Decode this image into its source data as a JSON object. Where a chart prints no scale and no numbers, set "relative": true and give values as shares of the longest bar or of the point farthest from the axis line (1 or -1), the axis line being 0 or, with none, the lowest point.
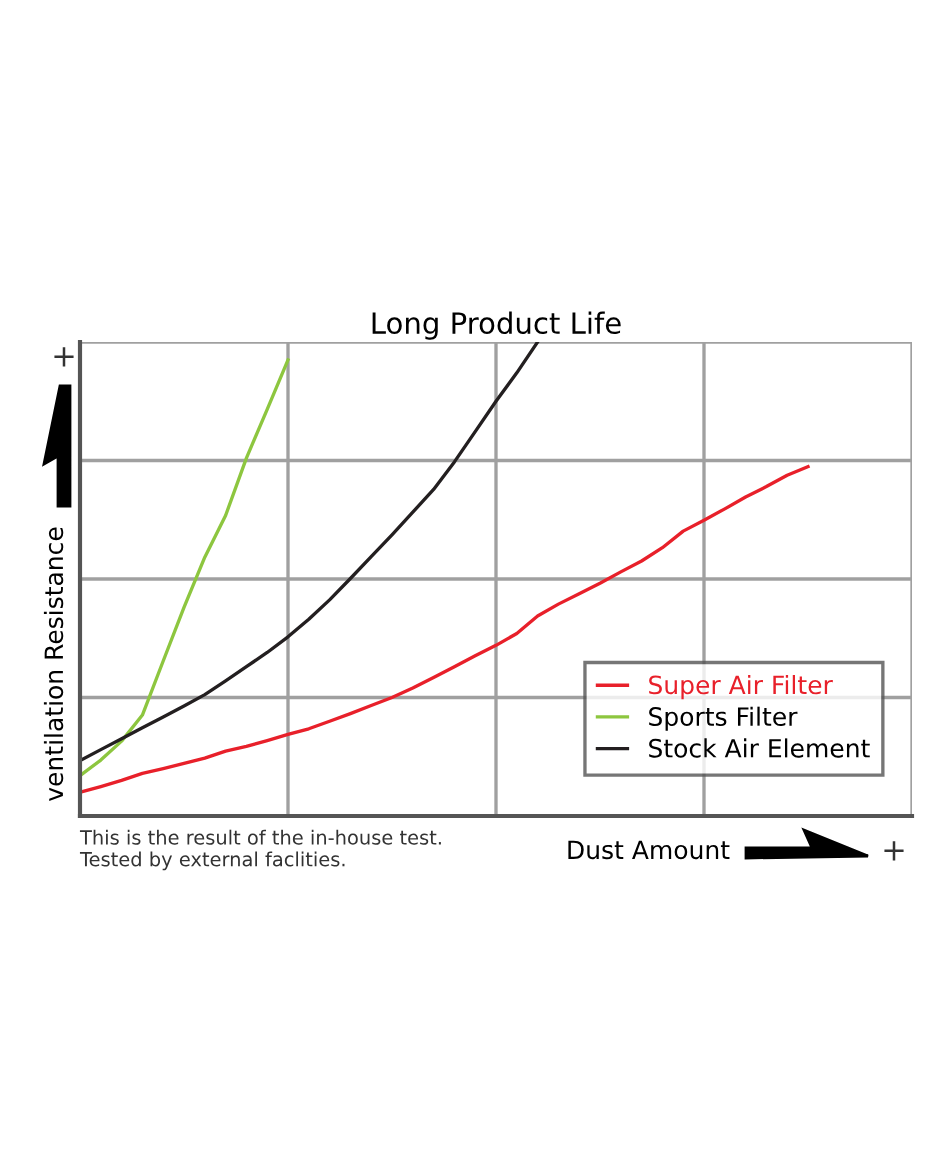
{
  "chart_data": {
    "type": "line",
    "title": "Long Product Life",
    "xlabel": "Dust Amount",
    "ylabel": "ventilation Resistance",
    "relative": true,
    "categories": [
      null,
      null,
      null,
      null,
      null,
      null,
      null,
      null,
      null,
      null,
      null,
      null,
      null,
      null,
      null,
      null,
      null,
      null,
      null,
      null,
      null,
      null,
      null,
      null,
      null,
      null,
      null,
      null,
      null,
      null,
      null,
      null,
      null,
      null,
      null,
      null,
      null,
      null,
      null,
      null,
      null
    ],
    "grid": true,
    "legend": "bottom right",
    "marker": "none",
    "line_style": "solid",
    "series": [
      {
        "name": "Super Air Filter",
        "color": "#e8202a",
        "values": [
          0.05,
          0.062,
          0.075,
          0.09,
          0.1,
          0.111,
          0.122,
          0.137,
          0.147,
          0.159,
          0.172,
          0.184,
          0.2,
          0.216,
          0.233,
          0.25,
          0.27,
          0.292,
          0.315,
          0.338,
          0.36,
          0.385,
          0.422,
          0.447,
          0.469,
          0.491,
          0.515,
          0.538,
          0.566,
          0.601,
          0.624,
          0.648,
          0.673,
          0.695,
          0.719,
          0.737,
          null,
          null,
          null,
          null,
          null
        ]
      },
      {
        "name": "Sports Filter",
        "color": "#8dc63f",
        "values": [
          0.085,
          0.118,
          0.158,
          0.213,
          0.327,
          0.44,
          0.546,
          0.634,
          0.755,
          0.858,
          0.962,
          null,
          null,
          null,
          null,
          null,
          null,
          null,
          null,
          null,
          null,
          null,
          null,
          null,
          null,
          null,
          null,
          null,
          null,
          null,
          null,
          null,
          null,
          null,
          null,
          null,
          null,
          null,
          null,
          null,
          null
        ]
      },
      {
        "name": "Stock Air Element",
        "color": "#231f20",
        "values": [
          0.117,
          0.14,
          0.163,
          0.186,
          0.209,
          0.232,
          0.256,
          0.285,
          0.315,
          0.345,
          0.378,
          0.415,
          0.456,
          0.501,
          0.547,
          0.593,
          0.641,
          0.689,
          0.747,
          0.811,
          0.875,
          0.935,
          1.0,
          null,
          null,
          null,
          null,
          null,
          null,
          null,
          null,
          null,
          null,
          null,
          null,
          null,
          null,
          null,
          null,
          null,
          null
        ]
      }
    ],
    "annotations": [
      "+",
      "+",
      "This is the result of the in-house test.\nTested by external faclities."
    ]
  }
}
